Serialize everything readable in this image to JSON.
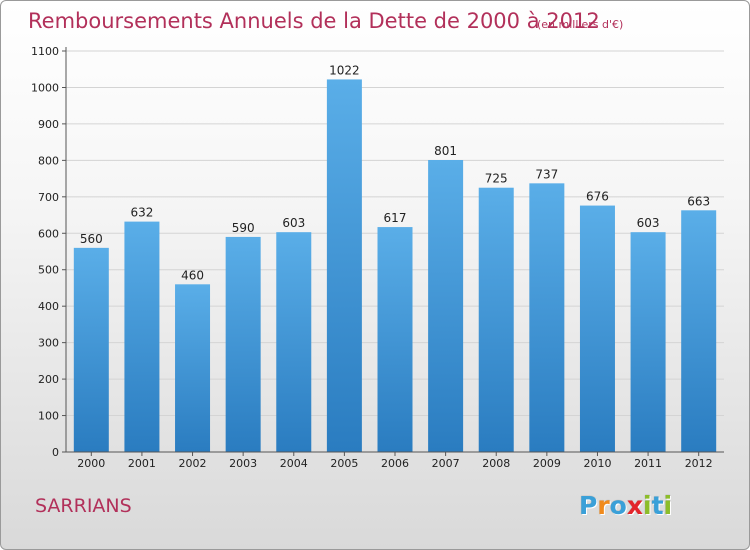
{
  "header": {
    "title": "Remboursements Annuels de la Dette de 2000 à 2012",
    "unit": "(en milliers d'€)"
  },
  "footer": {
    "commune": "SARRIANS",
    "brand": "Proxiti",
    "brand_letters": [
      {
        "ch": "P",
        "color": "#3aa0d8"
      },
      {
        "ch": "r",
        "color": "#f08a1c"
      },
      {
        "ch": "o",
        "color": "#3aa0d8"
      },
      {
        "ch": "x",
        "color": "#e3252b"
      },
      {
        "ch": "i",
        "color": "#8cbd29"
      },
      {
        "ch": "t",
        "color": "#3aa0d8"
      },
      {
        "ch": "i",
        "color": "#8cbd29"
      }
    ]
  },
  "colors": {
    "title": "#b2305a",
    "bar_top": "#5aaee8",
    "bar_bottom": "#2a7cc0",
    "grid": "#d4d4d4",
    "axis": "#555555"
  },
  "chart_data": {
    "type": "bar",
    "title": "Remboursements Annuels de la Dette de 2000 à 2012",
    "subtitle": "(en milliers d'€)",
    "categories": [
      "2000",
      "2001",
      "2002",
      "2003",
      "2004",
      "2005",
      "2006",
      "2007",
      "2008",
      "2009",
      "2010",
      "2011",
      "2012"
    ],
    "values": [
      560,
      632,
      460,
      590,
      603,
      1022,
      617,
      801,
      725,
      737,
      676,
      603,
      663
    ],
    "data_labels": [
      "560",
      "632",
      "460",
      "590",
      "603",
      "1022",
      "617",
      "801",
      "725",
      "737",
      "676",
      "603",
      "663"
    ],
    "ylim": [
      0,
      1100
    ],
    "yticks": [
      0,
      100,
      200,
      300,
      400,
      500,
      600,
      700,
      800,
      900,
      1000,
      1100
    ],
    "grid": true,
    "legend": "none"
  }
}
